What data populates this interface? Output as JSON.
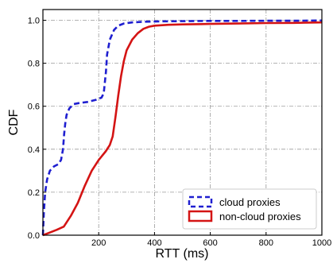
{
  "chart_data": {
    "type": "line",
    "xlabel": "RTT (ms)",
    "ylabel": "CDF",
    "xlim": [
      0,
      1000
    ],
    "ylim": [
      0,
      1.05
    ],
    "grid": true,
    "legend_position": "lower-right",
    "x_ticks": [
      {
        "value": 200,
        "label": "200"
      },
      {
        "value": 400,
        "label": "400"
      },
      {
        "value": 600,
        "label": "600"
      },
      {
        "value": 800,
        "label": "800"
      },
      {
        "value": 1000,
        "label": "1000"
      }
    ],
    "y_ticks": [
      {
        "value": 0.0,
        "label": "0.0"
      },
      {
        "value": 0.2,
        "label": "0.2"
      },
      {
        "value": 0.4,
        "label": "0.4"
      },
      {
        "value": 0.6,
        "label": "0.6"
      },
      {
        "value": 0.8,
        "label": "0.8"
      },
      {
        "value": 1.0,
        "label": "1.0"
      }
    ],
    "series": [
      {
        "name": "cloud proxies",
        "color": "#1f1fd0",
        "style": "dashed",
        "x": [
          0,
          3,
          8,
          15,
          25,
          40,
          55,
          65,
          72,
          76,
          80,
          85,
          95,
          110,
          130,
          160,
          190,
          210,
          218,
          222,
          226,
          230,
          240,
          255,
          270,
          290,
          320,
          360,
          420,
          500,
          600,
          700,
          800,
          900,
          1000
        ],
        "y": [
          0,
          0.1,
          0.2,
          0.26,
          0.3,
          0.32,
          0.33,
          0.35,
          0.4,
          0.47,
          0.52,
          0.56,
          0.59,
          0.61,
          0.615,
          0.62,
          0.63,
          0.64,
          0.66,
          0.71,
          0.76,
          0.84,
          0.91,
          0.955,
          0.975,
          0.985,
          0.99,
          0.993,
          0.995,
          0.996,
          0.997,
          0.997,
          0.998,
          0.998,
          0.999
        ]
      },
      {
        "name": "non-cloud proxies",
        "color": "#d41414",
        "style": "solid",
        "x": [
          0,
          20,
          50,
          75,
          100,
          125,
          150,
          175,
          200,
          225,
          240,
          250,
          260,
          270,
          280,
          290,
          300,
          320,
          340,
          360,
          380,
          400,
          450,
          500,
          600,
          700,
          800,
          900,
          1000
        ],
        "y": [
          0,
          0.01,
          0.025,
          0.04,
          0.09,
          0.15,
          0.23,
          0.3,
          0.35,
          0.39,
          0.42,
          0.46,
          0.55,
          0.65,
          0.74,
          0.81,
          0.86,
          0.91,
          0.94,
          0.96,
          0.97,
          0.975,
          0.979,
          0.981,
          0.983,
          0.985,
          0.987,
          0.988,
          0.99
        ]
      }
    ]
  }
}
